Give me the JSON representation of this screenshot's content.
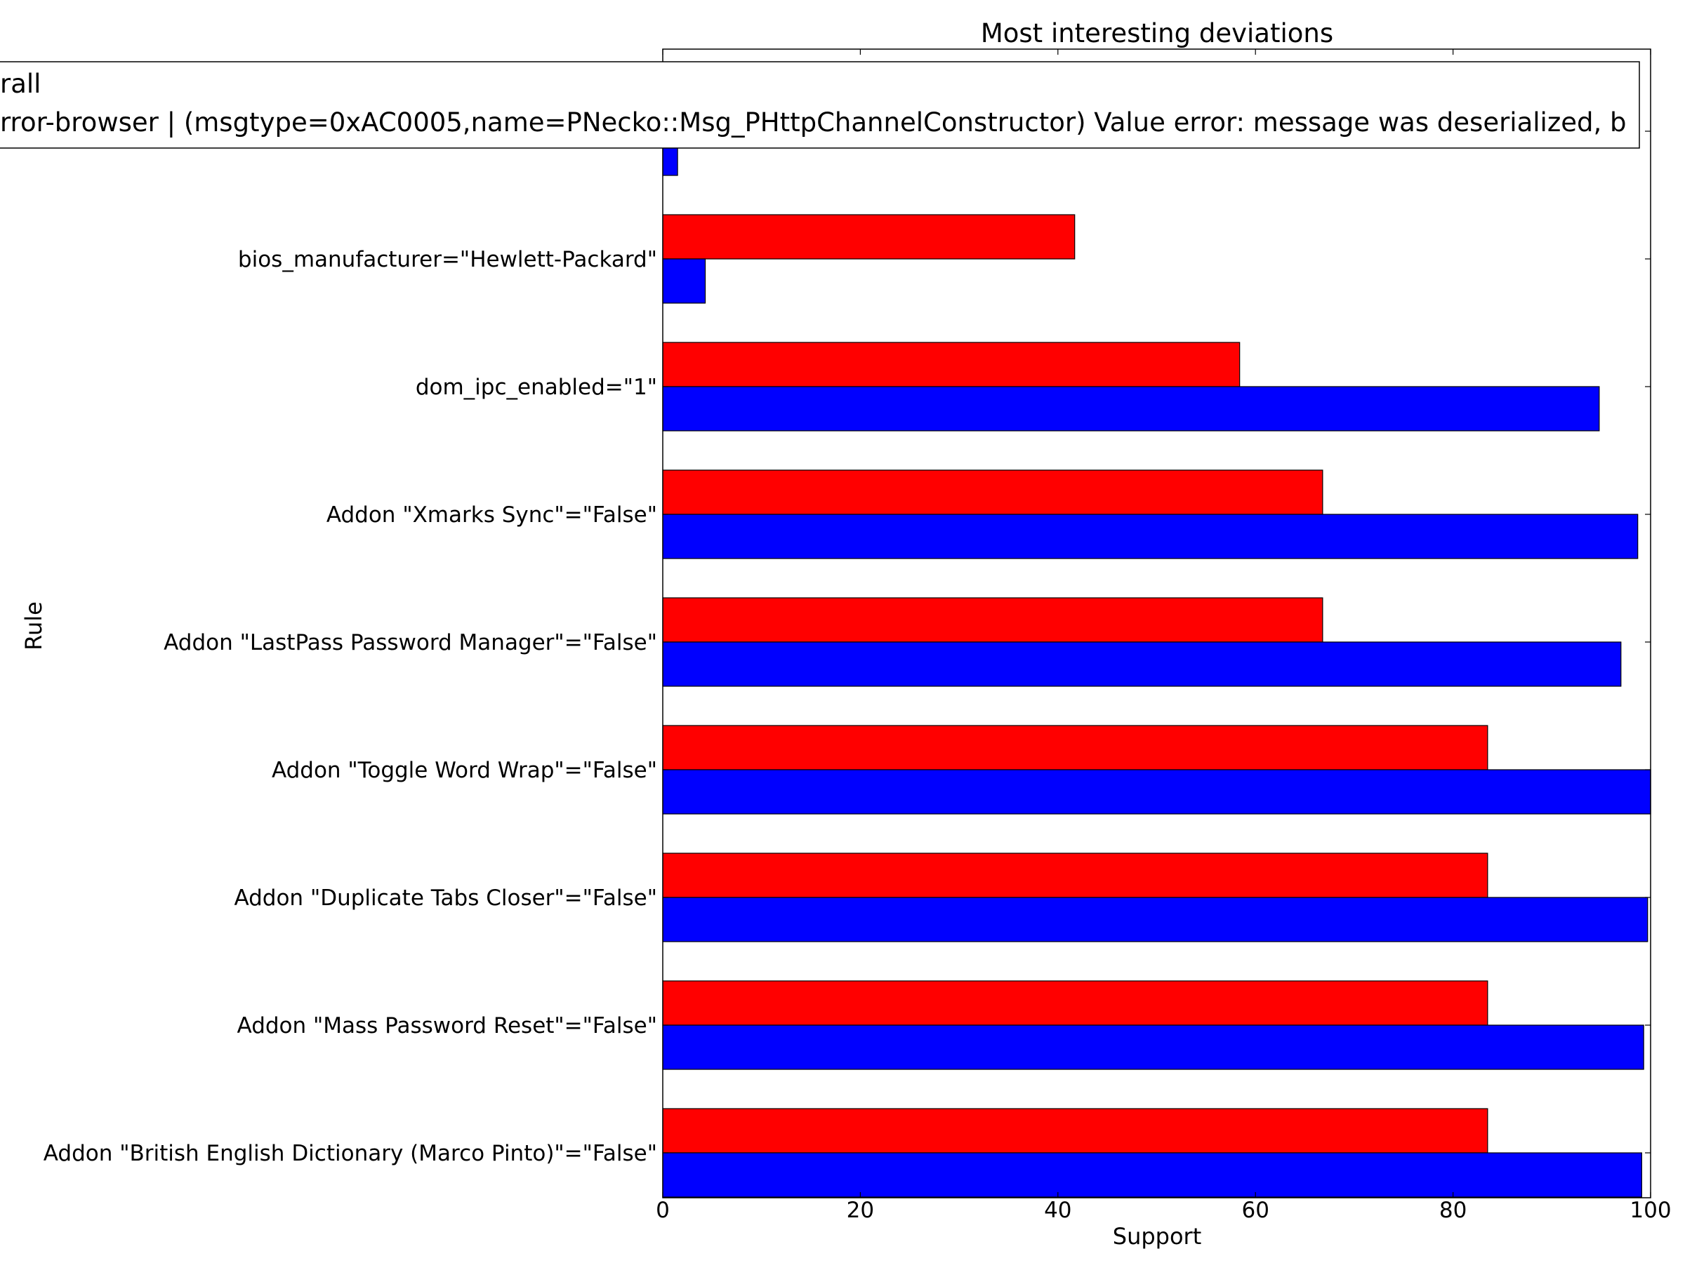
{
  "chart_data": {
    "type": "bar",
    "orientation": "horizontal",
    "title": "Most interesting deviations",
    "xlabel": "Support",
    "ylabel": "Rule",
    "xlim": [
      0,
      100
    ],
    "xticks": [
      "0",
      "20",
      "40",
      "60",
      "80",
      "100"
    ],
    "grid": false,
    "legend_placement": "top",
    "categories": [
      "Addon \"British English Dictionary (Marco Pinto)\"=\"False\"",
      "Addon \"Mass Password Reset\"=\"False\"",
      "Addon \"Duplicate Tabs Closer\"=\"False\"",
      "Addon \"Toggle Word Wrap\"=\"False\"",
      "Addon \"LastPass Password Manager\"=\"False\"",
      "Addon \"Xmarks Sync\"=\"False\"",
      "dom_ipc_enabled=\"1\"",
      "bios_manufacturer=\"Hewlett-Packard\"",
      ""
    ],
    "series": [
      {
        "name": "rror-browser | (msgtype=0xAC0005,name=PNecko::Msg_PHttpChannelConstructor) Value error: message was deserialized, b",
        "color": "#ff0000",
        "values": [
          83.5,
          83.5,
          83.5,
          83.5,
          66.8,
          66.8,
          58.4,
          41.7,
          null
        ]
      },
      {
        "name": "rall",
        "color": "#0000ff",
        "values": [
          99.1,
          99.3,
          99.7,
          100.0,
          97.0,
          98.7,
          94.8,
          4.3,
          1.5
        ]
      }
    ]
  }
}
